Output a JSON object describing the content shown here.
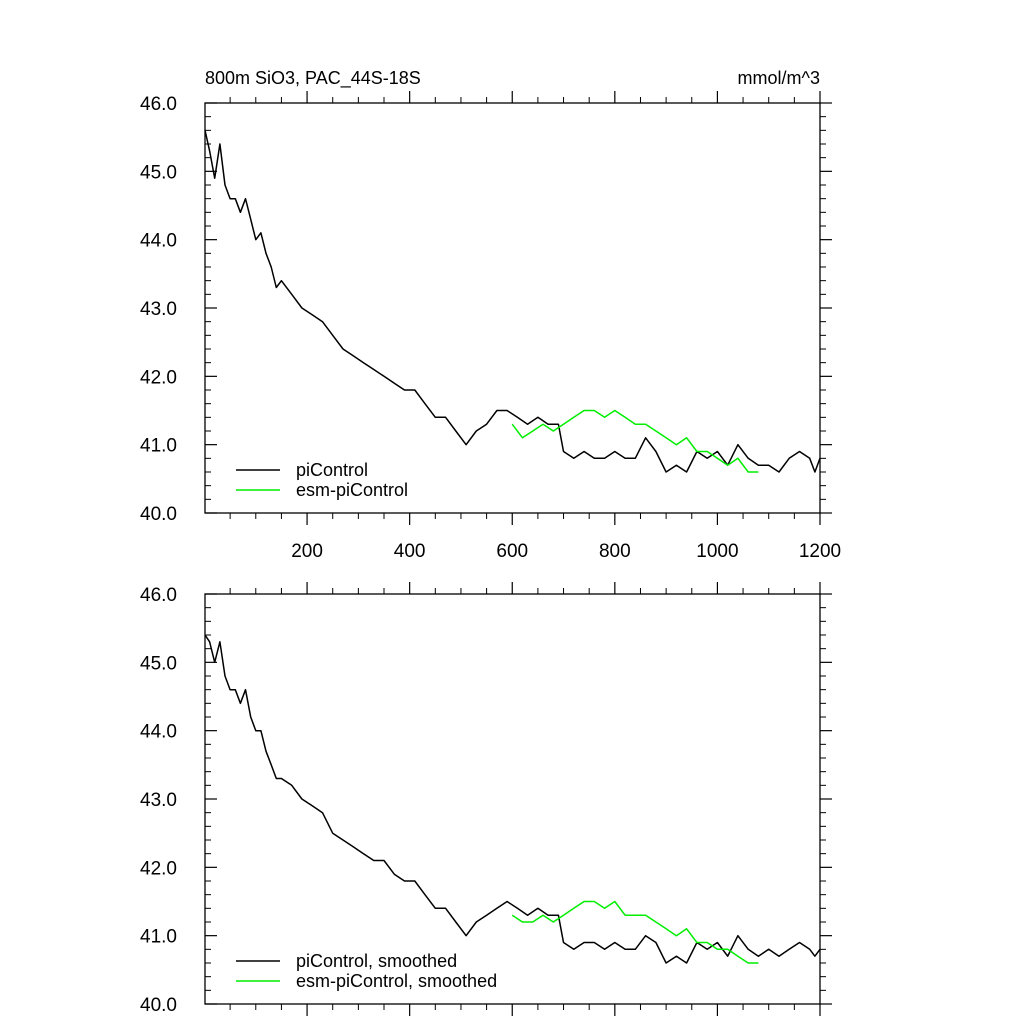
{
  "chart_data": [
    {
      "type": "line",
      "title": "800m SiO3, PAC_44S-18S",
      "units": "mmol/m^3",
      "xlim": [
        1,
        1200
      ],
      "ylim": [
        40.0,
        46.0
      ],
      "xticks": [
        200,
        400,
        600,
        800,
        1000,
        1200
      ],
      "yticks": [
        40.0,
        41.0,
        42.0,
        43.0,
        44.0,
        45.0,
        46.0
      ],
      "yticklabels": [
        "40.0",
        "41.0",
        "42.0",
        "43.0",
        "44.0",
        "45.0",
        "46.0"
      ],
      "xticklabels": [
        "200",
        "400",
        "600",
        "800",
        "1000",
        "1200"
      ],
      "legend_position": "bottom-left",
      "series": [
        {
          "name": "piControl",
          "color": "#000000",
          "x": [
            1,
            10,
            20,
            30,
            40,
            50,
            60,
            70,
            80,
            90,
            100,
            110,
            120,
            130,
            140,
            150,
            170,
            190,
            210,
            230,
            250,
            270,
            290,
            310,
            330,
            350,
            370,
            390,
            410,
            430,
            450,
            470,
            490,
            510,
            530,
            550,
            570,
            590,
            610,
            630,
            650,
            670,
            690,
            700,
            720,
            740,
            760,
            780,
            800,
            820,
            840,
            860,
            880,
            900,
            920,
            940,
            960,
            980,
            1000,
            1020,
            1040,
            1060,
            1080,
            1100,
            1120,
            1140,
            1160,
            1180,
            1190,
            1200
          ],
          "y": [
            45.6,
            45.3,
            44.9,
            45.4,
            44.8,
            44.6,
            44.6,
            44.4,
            44.6,
            44.3,
            44.0,
            44.1,
            43.8,
            43.6,
            43.3,
            43.4,
            43.2,
            43.0,
            42.9,
            42.8,
            42.6,
            42.4,
            42.3,
            42.2,
            42.1,
            42.0,
            41.9,
            41.8,
            41.8,
            41.6,
            41.4,
            41.4,
            41.2,
            41.0,
            41.2,
            41.3,
            41.5,
            41.5,
            41.4,
            41.3,
            41.4,
            41.3,
            41.3,
            40.9,
            40.8,
            40.9,
            40.8,
            40.8,
            40.9,
            40.8,
            40.8,
            41.1,
            40.9,
            40.6,
            40.7,
            40.6,
            40.9,
            40.8,
            40.9,
            40.7,
            41.0,
            40.8,
            40.7,
            40.7,
            40.6,
            40.8,
            40.9,
            40.8,
            40.6,
            40.8
          ]
        },
        {
          "name": "esm-piControl",
          "color": "#00ee00",
          "x": [
            600,
            620,
            640,
            660,
            680,
            700,
            720,
            740,
            760,
            780,
            800,
            820,
            840,
            860,
            880,
            900,
            920,
            940,
            960,
            980,
            1000,
            1020,
            1040,
            1060,
            1080
          ],
          "y": [
            41.3,
            41.1,
            41.2,
            41.3,
            41.2,
            41.3,
            41.4,
            41.5,
            41.5,
            41.4,
            41.5,
            41.4,
            41.3,
            41.3,
            41.2,
            41.1,
            41.0,
            41.1,
            40.9,
            40.9,
            40.8,
            40.7,
            40.8,
            40.6,
            40.6
          ]
        }
      ]
    },
    {
      "type": "line",
      "xlim": [
        1,
        1200
      ],
      "ylim": [
        40.0,
        46.0
      ],
      "xticks": [
        200,
        400,
        600,
        800,
        1000,
        1200
      ],
      "yticks": [
        40.0,
        41.0,
        42.0,
        43.0,
        44.0,
        45.0,
        46.0
      ],
      "yticklabels": [
        "40.0",
        "41.0",
        "42.0",
        "43.0",
        "44.0",
        "45.0",
        "46.0"
      ],
      "legend_position": "bottom-left",
      "series": [
        {
          "name": "piControl, smoothed",
          "color": "#000000",
          "x": [
            1,
            10,
            20,
            30,
            40,
            50,
            60,
            70,
            80,
            90,
            100,
            110,
            120,
            130,
            140,
            150,
            170,
            190,
            210,
            230,
            250,
            270,
            290,
            310,
            330,
            350,
            370,
            390,
            410,
            430,
            450,
            470,
            490,
            510,
            530,
            550,
            570,
            590,
            610,
            630,
            650,
            670,
            690,
            700,
            720,
            740,
            760,
            780,
            800,
            820,
            840,
            860,
            880,
            900,
            920,
            940,
            960,
            980,
            1000,
            1020,
            1040,
            1060,
            1080,
            1100,
            1120,
            1140,
            1160,
            1180,
            1190,
            1200
          ],
          "y": [
            45.4,
            45.3,
            45.0,
            45.3,
            44.8,
            44.6,
            44.6,
            44.4,
            44.6,
            44.2,
            44.0,
            44.0,
            43.7,
            43.5,
            43.3,
            43.3,
            43.2,
            43.0,
            42.9,
            42.8,
            42.5,
            42.4,
            42.3,
            42.2,
            42.1,
            42.1,
            41.9,
            41.8,
            41.8,
            41.6,
            41.4,
            41.4,
            41.2,
            41.0,
            41.2,
            41.3,
            41.4,
            41.5,
            41.4,
            41.3,
            41.4,
            41.3,
            41.3,
            40.9,
            40.8,
            40.9,
            40.9,
            40.8,
            40.9,
            40.8,
            40.8,
            41.0,
            40.9,
            40.6,
            40.7,
            40.6,
            40.9,
            40.8,
            40.9,
            40.7,
            41.0,
            40.8,
            40.7,
            40.8,
            40.7,
            40.8,
            40.9,
            40.8,
            40.7,
            40.8
          ]
        },
        {
          "name": "esm-piControl, smoothed",
          "color": "#00ee00",
          "x": [
            600,
            620,
            640,
            660,
            680,
            700,
            720,
            740,
            760,
            780,
            800,
            820,
            840,
            860,
            880,
            900,
            920,
            940,
            960,
            980,
            1000,
            1020,
            1040,
            1060,
            1080
          ],
          "y": [
            41.3,
            41.2,
            41.2,
            41.3,
            41.2,
            41.3,
            41.4,
            41.5,
            41.5,
            41.4,
            41.5,
            41.3,
            41.3,
            41.3,
            41.2,
            41.1,
            41.0,
            41.1,
            40.9,
            40.9,
            40.8,
            40.8,
            40.7,
            40.6,
            40.6
          ]
        }
      ]
    }
  ]
}
